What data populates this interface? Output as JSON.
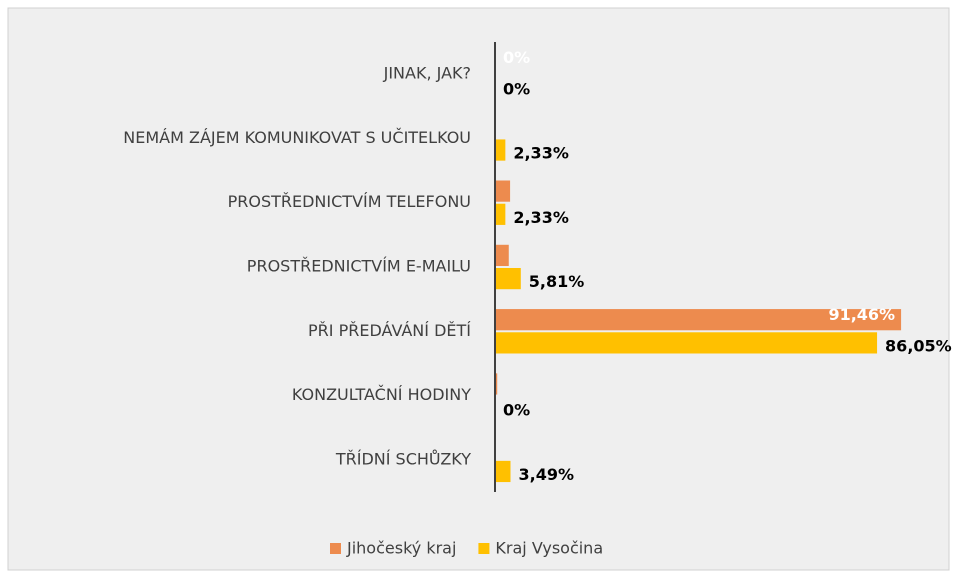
{
  "chart_data": {
    "type": "barh",
    "categories": [
      "JINAK, JAK?",
      "NEMÁM ZÁJEM KOMUNIKOVAT S UČITELKOU",
      "PROSTŘEDNICTVÍM TELEFONU",
      "PROSTŘEDNICTVÍM E-MAILU",
      "PŘI PŘEDÁVÁNÍ DĚTÍ",
      "KONZULTAČNÍ HODINY",
      "TŘÍDNÍ SCHŮZKY"
    ],
    "series": [
      {
        "name": "Jihočeský kraj",
        "color": "#ed8b4e",
        "values": [
          0,
          0,
          3.4,
          3.1,
          91.46,
          0.5,
          0
        ],
        "value_labels": [
          "0%",
          null,
          null,
          null,
          "91,46%",
          null,
          null
        ]
      },
      {
        "name": "Kraj Vysočina",
        "color": "#ffc000",
        "values": [
          0,
          2.33,
          2.33,
          5.81,
          86.05,
          0,
          3.49
        ],
        "value_labels": [
          "0%",
          "2,33%",
          "2,33%",
          "5,81%",
          "86,05%",
          "0%",
          "3,49%"
        ]
      }
    ],
    "xlim": [
      0,
      100
    ],
    "legend": "bottom"
  }
}
